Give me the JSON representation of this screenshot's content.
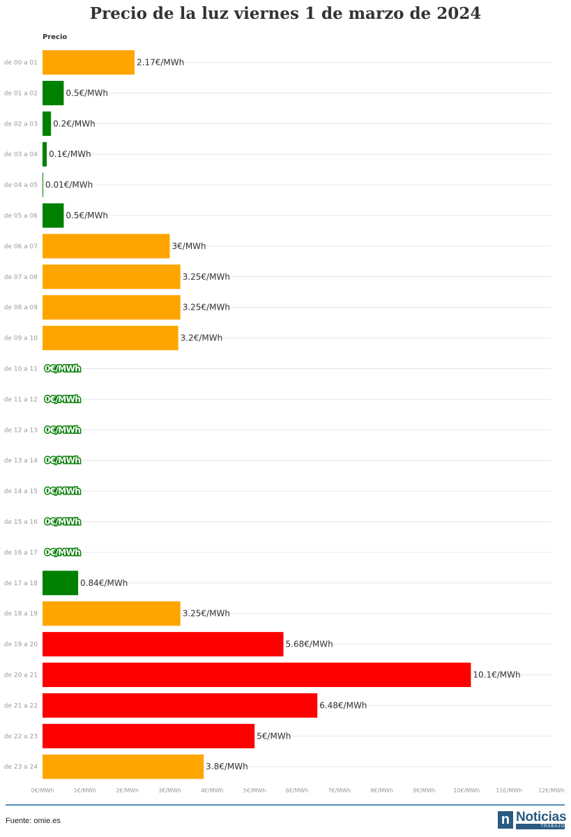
{
  "chart_data": {
    "type": "bar",
    "orientation": "horizontal",
    "title": "Precio de la luz viernes 1 de marzo de 2024",
    "series_name": "Precio",
    "unit": "€/MWh",
    "categories": [
      "de 00 a 01",
      "de 01 a 02",
      "de 02 a 03",
      "de 03 a 04",
      "de 04 a 05",
      "de 05 a 06",
      "de 06 a 07",
      "de 07 a 08",
      "de 08 a 09",
      "de 09 a 10",
      "de 10 a 11",
      "de 11 a 12",
      "de 12 a 13",
      "de 13 a 14",
      "de 14 a 15",
      "de 15 a 16",
      "de 16 a 17",
      "de 17 a 18",
      "de 18 a 19",
      "de 19 a 20",
      "de 20 a 21",
      "de 21 a 22",
      "de 22 a 23",
      "de 23 a 24"
    ],
    "values": [
      2.17,
      0.5,
      0.2,
      0.1,
      0.01,
      0.5,
      3,
      3.25,
      3.25,
      3.2,
      0,
      0,
      0,
      0,
      0,
      0,
      0,
      0.84,
      3.25,
      5.68,
      10.1,
      6.48,
      5,
      3.8
    ],
    "value_labels": [
      "2.17€/MWh",
      "0.5€/MWh",
      "0.2€/MWh",
      "0.1€/MWh",
      "0.01€/MWh",
      "0.5€/MWh",
      "3€/MWh",
      "3.25€/MWh",
      "3.25€/MWh",
      "3.2€/MWh",
      "0€/MWh",
      "0€/MWh",
      "0€/MWh",
      "0€/MWh",
      "0€/MWh",
      "0€/MWh",
      "0€/MWh",
      "0.84€/MWh",
      "3.25€/MWh",
      "5.68€/MWh",
      "10.1€/MWh",
      "6.48€/MWh",
      "5€/MWh",
      "3.8€/MWh"
    ],
    "bar_colors": [
      "#ffa500",
      "#008000",
      "#008000",
      "#008000",
      "#008000",
      "#008000",
      "#ffa500",
      "#ffa500",
      "#ffa500",
      "#ffa500",
      "#008000",
      "#008000",
      "#008000",
      "#008000",
      "#008000",
      "#008000",
      "#008000",
      "#008000",
      "#ffa500",
      "#ff0000",
      "#ff0000",
      "#ff0000",
      "#ff0000",
      "#ffa500"
    ],
    "xlim": [
      0,
      12
    ],
    "x_ticks": [
      0,
      1,
      2,
      3,
      4,
      5,
      6,
      7,
      8,
      9,
      10,
      11,
      12
    ],
    "x_tick_labels": [
      "0€/MWh",
      "1€/MWh",
      "2€/MWh",
      "3€/MWh",
      "4€/MWh",
      "5€/MWh",
      "6€/MWh",
      "7€/MWh",
      "8€/MWh",
      "9€/MWh",
      "10€/MWh",
      "11€/MWh",
      "12€/MWh"
    ],
    "grid": true,
    "colors": {
      "low": "#008000",
      "mid": "#ffa500",
      "high": "#ff0000",
      "grid": "#e6e6e6"
    }
  },
  "footer": {
    "source": "Fuente: omie.es",
    "brand_mark": "n",
    "brand_name": "Noticias",
    "brand_sub": "TRABAJO"
  }
}
